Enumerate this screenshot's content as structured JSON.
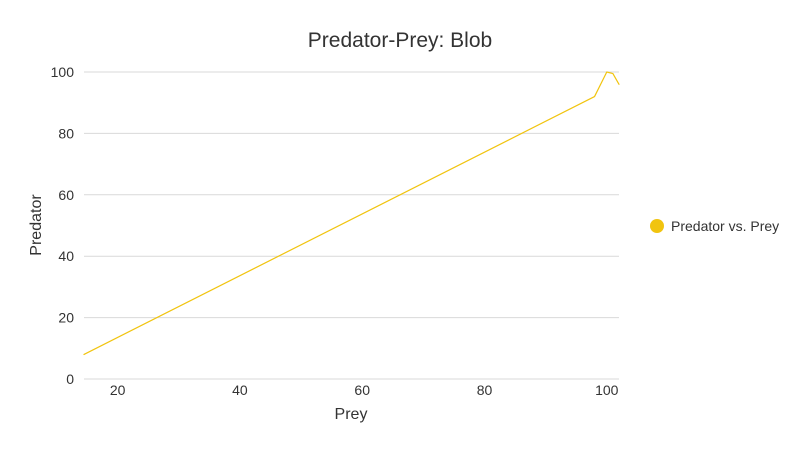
{
  "chart_data": {
    "type": "line",
    "title": "Predator-Prey: Blob",
    "xlabel": "Prey",
    "ylabel": "Predator",
    "xlim": [
      14.5,
      102
    ],
    "ylim": [
      0,
      100
    ],
    "xticks": [
      20,
      40,
      60,
      80,
      100
    ],
    "yticks": [
      0,
      20,
      40,
      60,
      80,
      100
    ],
    "grid": true,
    "legend_position": "right",
    "series": [
      {
        "name": "Predator vs. Prey",
        "color": "#f1c40f",
        "points": [
          [
            14.5,
            8
          ],
          [
            98,
            92
          ],
          [
            100,
            100
          ],
          [
            101,
            99.5
          ],
          [
            102,
            96
          ]
        ]
      }
    ]
  }
}
